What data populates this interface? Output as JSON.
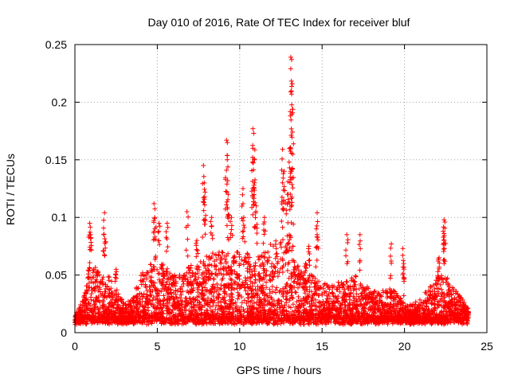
{
  "chart_data": {
    "type": "scatter",
    "title": "Day 010 of 2016, Rate Of TEC Index for receiver bluf",
    "xlabel": "GPS time / hours",
    "ylabel": "ROTI / TECUs",
    "xlim": [
      0,
      25
    ],
    "ylim": [
      0,
      0.25
    ],
    "xticks": [
      0,
      5,
      10,
      15,
      20,
      25
    ],
    "yticks": [
      0,
      0.05,
      0.1,
      0.15,
      0.2,
      0.25
    ],
    "xtick_labels": [
      "0",
      "5",
      "10",
      "15",
      "20",
      "25"
    ],
    "ytick_labels": [
      "0",
      "0.05",
      "0.1",
      "0.15",
      "0.2",
      "0.25"
    ],
    "grid": true,
    "marker": "+",
    "color": "#ff0000",
    "envelope_note": "dense cloud of points, base level ~0.01-0.03 TECU across 0-24 h",
    "envelope": [
      [
        0.0,
        0.015
      ],
      [
        0.5,
        0.03
      ],
      [
        1.0,
        0.07
      ],
      [
        1.5,
        0.05
      ],
      [
        2.0,
        0.05
      ],
      [
        2.5,
        0.04
      ],
      [
        3.0,
        0.025
      ],
      [
        3.5,
        0.03
      ],
      [
        4.0,
        0.05
      ],
      [
        4.5,
        0.06
      ],
      [
        5.0,
        0.07
      ],
      [
        5.5,
        0.06
      ],
      [
        6.0,
        0.05
      ],
      [
        6.5,
        0.05
      ],
      [
        7.0,
        0.06
      ],
      [
        7.5,
        0.06
      ],
      [
        8.0,
        0.07
      ],
      [
        8.5,
        0.07
      ],
      [
        9.0,
        0.07
      ],
      [
        9.5,
        0.07
      ],
      [
        10.0,
        0.07
      ],
      [
        10.5,
        0.07
      ],
      [
        11.0,
        0.07
      ],
      [
        11.5,
        0.07
      ],
      [
        12.0,
        0.08
      ],
      [
        12.5,
        0.08
      ],
      [
        13.0,
        0.09
      ],
      [
        13.5,
        0.06
      ],
      [
        14.0,
        0.05
      ],
      [
        14.5,
        0.05
      ],
      [
        15.0,
        0.045
      ],
      [
        15.5,
        0.04
      ],
      [
        16.0,
        0.045
      ],
      [
        16.5,
        0.045
      ],
      [
        17.0,
        0.05
      ],
      [
        17.5,
        0.04
      ],
      [
        18.0,
        0.04
      ],
      [
        18.5,
        0.035
      ],
      [
        19.0,
        0.04
      ],
      [
        19.5,
        0.035
      ],
      [
        20.0,
        0.025
      ],
      [
        20.5,
        0.025
      ],
      [
        21.0,
        0.03
      ],
      [
        21.5,
        0.04
      ],
      [
        22.0,
        0.05
      ],
      [
        22.5,
        0.05
      ],
      [
        23.0,
        0.04
      ],
      [
        23.5,
        0.03
      ],
      [
        23.9,
        0.02
      ]
    ],
    "spikes": [
      [
        0.9,
        0.095
      ],
      [
        0.95,
        0.085
      ],
      [
        1.8,
        0.104
      ],
      [
        1.75,
        0.085
      ],
      [
        2.5,
        0.055
      ],
      [
        4.8,
        0.112
      ],
      [
        4.85,
        0.1
      ],
      [
        5.1,
        0.095
      ],
      [
        5.6,
        0.095
      ],
      [
        6.8,
        0.105
      ],
      [
        7.4,
        0.08
      ],
      [
        7.8,
        0.145
      ],
      [
        7.85,
        0.13
      ],
      [
        7.9,
        0.122
      ],
      [
        8.3,
        0.1
      ],
      [
        9.2,
        0.167
      ],
      [
        9.25,
        0.165
      ],
      [
        9.2,
        0.141
      ],
      [
        9.3,
        0.12
      ],
      [
        9.5,
        0.1
      ],
      [
        10.2,
        0.125
      ],
      [
        10.25,
        0.1
      ],
      [
        10.8,
        0.177
      ],
      [
        10.85,
        0.173
      ],
      [
        10.8,
        0.16
      ],
      [
        10.9,
        0.15
      ],
      [
        10.9,
        0.13
      ],
      [
        11.0,
        0.11
      ],
      [
        11.5,
        0.1
      ],
      [
        12.6,
        0.159
      ],
      [
        12.7,
        0.14
      ],
      [
        12.6,
        0.13
      ],
      [
        12.9,
        0.12
      ],
      [
        13.1,
        0.239
      ],
      [
        13.15,
        0.237
      ],
      [
        13.1,
        0.229
      ],
      [
        13.1,
        0.209
      ],
      [
        13.15,
        0.207
      ],
      [
        13.2,
        0.174
      ],
      [
        13.0,
        0.148
      ],
      [
        13.1,
        0.14
      ],
      [
        14.0,
        0.06
      ],
      [
        14.2,
        0.075
      ],
      [
        14.7,
        0.104
      ],
      [
        14.65,
        0.09
      ],
      [
        16.5,
        0.085
      ],
      [
        17.3,
        0.085
      ],
      [
        19.2,
        0.077
      ],
      [
        19.9,
        0.073
      ],
      [
        19.95,
        0.06
      ],
      [
        22.4,
        0.098
      ],
      [
        22.45,
        0.096
      ],
      [
        22.4,
        0.086
      ],
      [
        22.1,
        0.065
      ]
    ]
  }
}
